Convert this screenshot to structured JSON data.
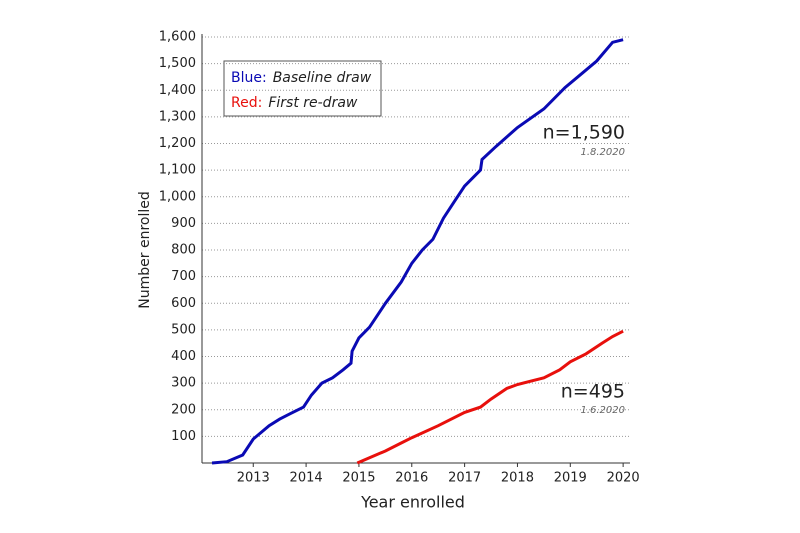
{
  "chart_data": {
    "type": "line",
    "x_label": "Year enrolled",
    "y_label": "Number enrolled",
    "xlim": [
      2012.03,
      2020.13
    ],
    "xticks": [
      2013,
      2014,
      2015,
      2016,
      2017,
      2018,
      2019,
      2020
    ],
    "ylim": [
      0,
      1600
    ],
    "yticks": [
      {
        "value": 100,
        "label": "100"
      },
      {
        "value": 200,
        "label": "200"
      },
      {
        "value": 300,
        "label": "300"
      },
      {
        "value": 400,
        "label": "400"
      },
      {
        "value": 500,
        "label": "500"
      },
      {
        "value": 600,
        "label": "600"
      },
      {
        "value": 700,
        "label": "700"
      },
      {
        "value": 800,
        "label": "800"
      },
      {
        "value": 900,
        "label": "900"
      },
      {
        "value": 1000,
        "label": "1,000"
      },
      {
        "value": 1100,
        "label": "1,100"
      },
      {
        "value": 1200,
        "label": "1,200"
      },
      {
        "value": 1300,
        "label": "1,300"
      },
      {
        "value": 1400,
        "label": "1,400"
      },
      {
        "value": 1500,
        "label": "1,500"
      },
      {
        "value": 1600,
        "label": "1,600"
      }
    ],
    "grid": true,
    "series": [
      {
        "name": "Baseline draw",
        "key": "Blue:",
        "color": "#0a0ab4",
        "x": [
          2012.22,
          2012.5,
          2012.8,
          2013.0,
          2013.3,
          2013.5,
          2013.7,
          2013.95,
          2014.1,
          2014.3,
          2014.5,
          2014.7,
          2014.85,
          2014.87,
          2015.0,
          2015.2,
          2015.5,
          2015.8,
          2016.0,
          2016.2,
          2016.4,
          2016.6,
          2016.8,
          2017.0,
          2017.3,
          2017.33,
          2017.6,
          2018.0,
          2018.5,
          2018.9,
          2019.2,
          2019.5,
          2019.8,
          2020.0
        ],
        "values": [
          0,
          5,
          30,
          90,
          140,
          165,
          185,
          210,
          255,
          300,
          320,
          350,
          375,
          420,
          470,
          510,
          600,
          680,
          750,
          800,
          840,
          920,
          980,
          1040,
          1100,
          1140,
          1190,
          1260,
          1330,
          1410,
          1460,
          1510,
          1580,
          1590
        ]
      },
      {
        "name": "First re-draw",
        "key": "Red:",
        "color": "#e8100c",
        "x": [
          2014.97,
          2015.2,
          2015.5,
          2015.8,
          2016.0,
          2016.5,
          2017.0,
          2017.3,
          2017.5,
          2017.8,
          2018.0,
          2018.5,
          2018.8,
          2019.0,
          2019.3,
          2019.6,
          2019.8,
          2020.0
        ],
        "values": [
          0,
          20,
          45,
          75,
          95,
          140,
          190,
          210,
          240,
          280,
          295,
          320,
          350,
          380,
          410,
          450,
          475,
          495
        ]
      }
    ],
    "annotations": [
      {
        "text": "n=1,590",
        "subtext": "1.8.2020"
      },
      {
        "text": "n=495",
        "subtext": "1.6.2020"
      }
    ]
  }
}
